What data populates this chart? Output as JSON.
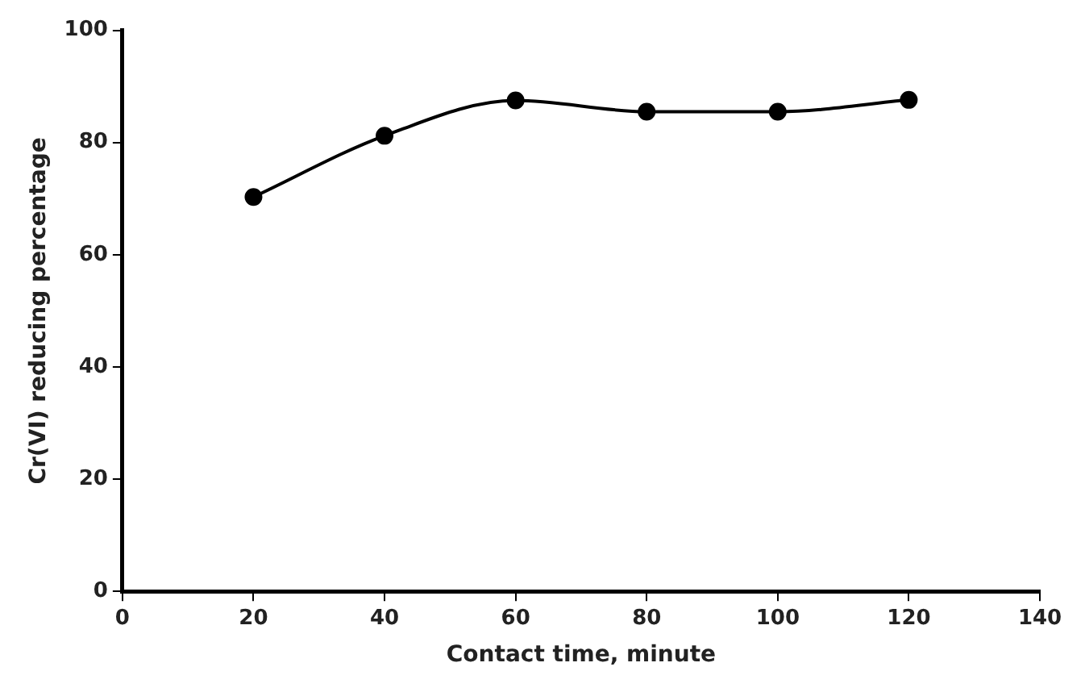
{
  "chart_data": {
    "type": "line",
    "xlabel": "Contact time, minute",
    "ylabel": "Cr(VI) reducing percentage",
    "x": [
      20,
      40,
      60,
      80,
      100,
      120
    ],
    "series": [
      {
        "color": "#000000",
        "values": [
          70.3,
          81.2,
          87.5,
          85.5,
          85.5,
          87.6
        ]
      }
    ],
    "xlim": [
      0,
      140
    ],
    "xticks": [
      0,
      20,
      40,
      60,
      80,
      100,
      120,
      140
    ],
    "ylim": [
      0,
      100
    ],
    "yticks": [
      0,
      20,
      40,
      60,
      80,
      100
    ],
    "grid": false,
    "legend": false,
    "marker": "circle",
    "line_style": "solid"
  }
}
